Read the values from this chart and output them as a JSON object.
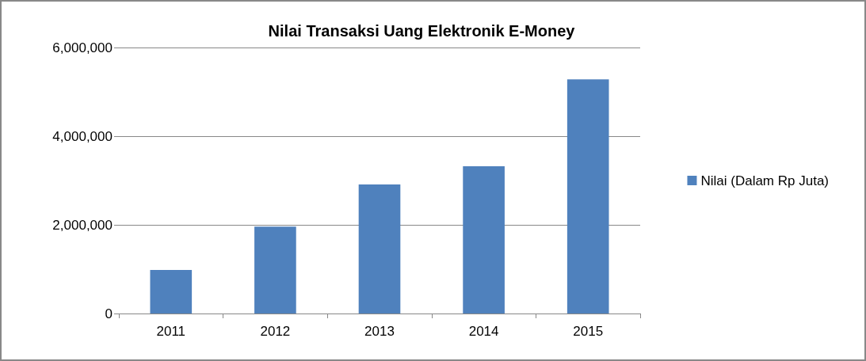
{
  "chart_data": {
    "type": "bar",
    "title": "Nilai Transaksi Uang Elektronik E-Money",
    "categories": [
      "2011",
      "2012",
      "2013",
      "2014",
      "2015"
    ],
    "series": [
      {
        "name": "Nilai (Dalam Rp Juta)",
        "color": "#4f81bd",
        "values": [
          980000,
          1960000,
          2910000,
          3320000,
          5280000
        ]
      }
    ],
    "ylim": [
      0,
      6000000
    ],
    "yticks": [
      0,
      {
        "value": 2000000,
        "label": "2,000,000"
      },
      {
        "value": 4000000,
        "label": "4,000,000"
      },
      {
        "value": 6000000,
        "label": "6,000,000"
      }
    ],
    "grid": "y",
    "legend": "right"
  }
}
